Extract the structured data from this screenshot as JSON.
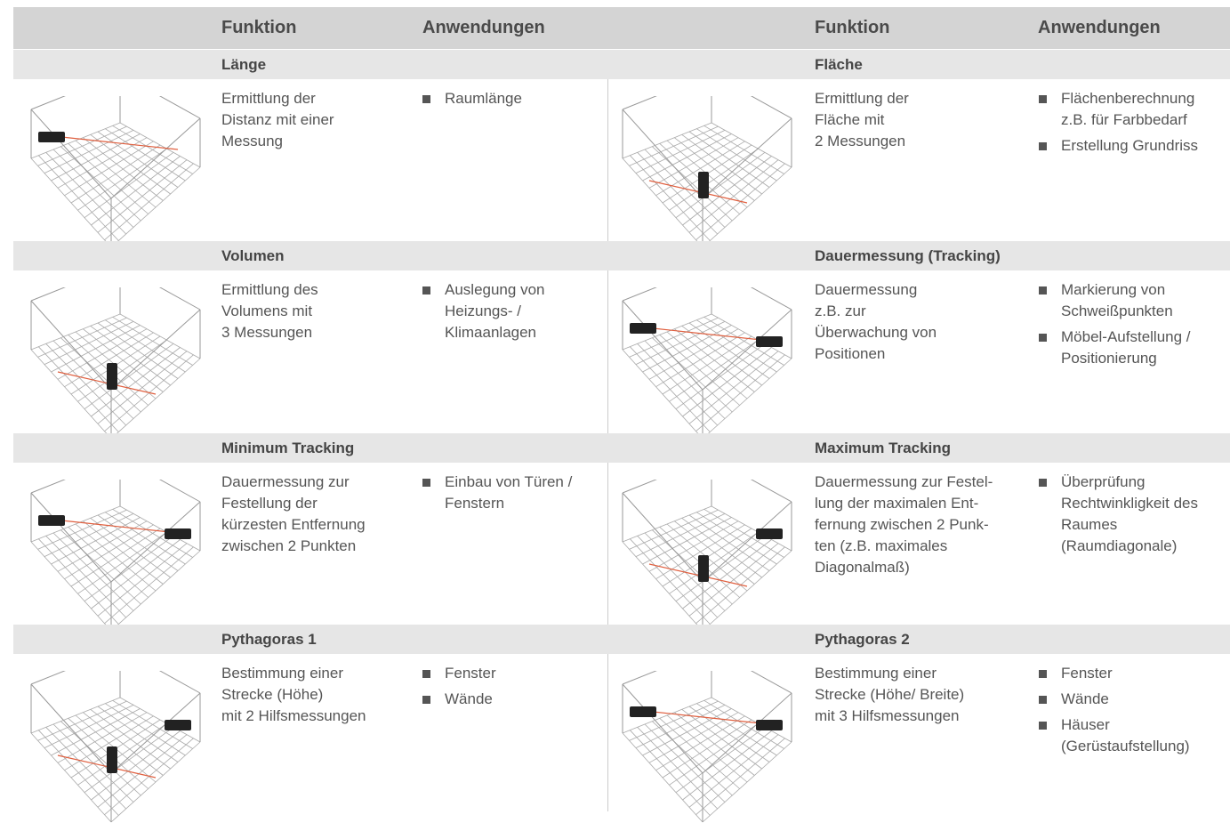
{
  "header": {
    "left": {
      "function": "Funktion",
      "applications": "Anwendungen"
    },
    "right": {
      "function": "Funktion",
      "applications": "Anwendungen"
    }
  },
  "rows": [
    {
      "left": {
        "title": "Länge",
        "description": [
          "Ermittlung der",
          "Distanz mit einer",
          "Messung"
        ],
        "applications": [
          [
            "Raumlänge"
          ]
        ]
      },
      "right": {
        "title": "Fläche",
        "description": [
          "Ermittlung der",
          "Fläche mit",
          "2 Messungen"
        ],
        "applications": [
          [
            "Flächenberechnung",
            "z.B. für Farbbedarf"
          ],
          [
            "Erstellung Grundriss"
          ]
        ]
      }
    },
    {
      "left": {
        "title": "Volumen",
        "description": [
          "Ermittlung des",
          "Volumens mit",
          "3 Messungen"
        ],
        "applications": [
          [
            "Auslegung von",
            "Heizungs- /",
            "Klimaanlagen"
          ]
        ]
      },
      "right": {
        "title": "Dauermessung (Tracking)",
        "description": [
          "Dauermessung",
          "z.B. zur",
          "Überwachung von",
          "Positionen"
        ],
        "applications": [
          [
            "Markierung von",
            "Schweißpunkten"
          ],
          [
            "Möbel-Aufstellung /",
            "Positionierung"
          ]
        ]
      }
    },
    {
      "left": {
        "title": "Minimum Tracking",
        "description": [
          "Dauermessung zur",
          "Festellung der",
          "kürzesten Entfernung",
          "zwischen 2 Punkten"
        ],
        "applications": [
          [
            "Einbau von Türen /",
            "Fenstern"
          ]
        ]
      },
      "right": {
        "title": "Maximum Tracking",
        "description": [
          "Dauermessung zur Festel-",
          "lung der maximalen Ent-",
          "fernung zwischen 2 Punk-",
          "ten (z.B. maximales",
          "Diagonalmaß)"
        ],
        "applications": [
          [
            "Überprüfung",
            "Rechtwinkligkeit des",
            "Raumes",
            "(Raumdiagonale)"
          ]
        ]
      }
    },
    {
      "left": {
        "title": "Pythagoras 1",
        "description": [
          "Bestimmung einer",
          "Strecke (Höhe)",
          "mit 2 Hilfsmessungen"
        ],
        "applications": [
          [
            "Fenster"
          ],
          [
            "Wände"
          ]
        ]
      },
      "right": {
        "title": "Pythagoras 2",
        "description": [
          "Bestimmung einer",
          "Strecke (Höhe/ Breite)",
          "mit 3 Hilfsmessungen"
        ],
        "applications": [
          [
            "Fenster"
          ],
          [
            "Wände"
          ],
          [
            "Häuser",
            "(Gerüstaufstellung)"
          ]
        ]
      }
    }
  ]
}
